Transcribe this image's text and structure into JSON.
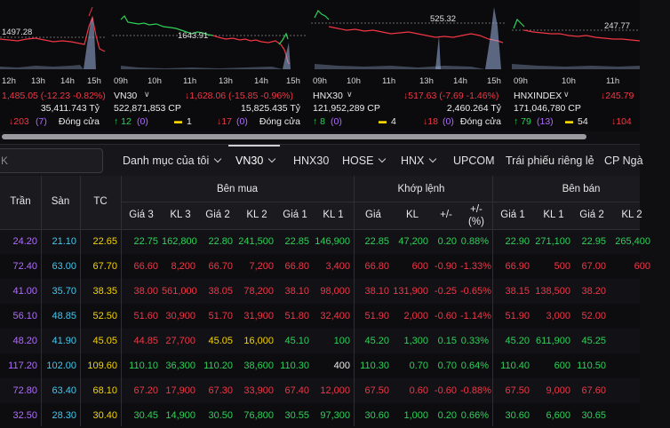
{
  "colors": {
    "up": "#2fd158",
    "down": "#f23645",
    "ceiling": "#b06bff",
    "floor": "#40c8f0",
    "ref": "#f5d300"
  },
  "cards": [
    {
      "id": "vnindex",
      "ref_value": "1497.28",
      "peak_value": "",
      "times": [
        "12h",
        "13h",
        "14h",
        "15h"
      ],
      "name": "",
      "change": "1,485.05 (-12.23 -0.82%)",
      "volume": "",
      "value": "35,411.743 Tỷ",
      "up_count": "↓203",
      "up_paren": "(7)",
      "ref_count": "",
      "down_count": "",
      "down_paren": "",
      "status": "Đóng cửa"
    },
    {
      "id": "vn30",
      "ref_value": "",
      "peak_value": "1643.91",
      "times": [
        "09h",
        "10h",
        "11h",
        "13h",
        "14h",
        "15h"
      ],
      "name": "VN30",
      "change": "↓1,628.06 (-15.85 -0.96%)",
      "volume": "522,871,853 CP",
      "value": "15,825.435 Tỷ",
      "up_count": "↑ 12",
      "up_paren": "(0)",
      "ref_count": "1",
      "down_count": "↓17",
      "down_paren": "(0)",
      "status": "Đóng cửa"
    },
    {
      "id": "hnx30",
      "ref_value": "",
      "peak_value": "525.32",
      "times": [
        "09h",
        "10h",
        "11h",
        "13h",
        "14h",
        "15h"
      ],
      "name": "HNX30",
      "change": "↓517.63 (-7.69 -1.46%)",
      "volume": "121,952,289 CP",
      "value": "2,460.264 Tỷ",
      "up_count": "↑ 8",
      "up_paren": "(0)",
      "ref_count": "4",
      "down_count": "↓18",
      "down_paren": "(0)",
      "status": "Đóng cửa"
    },
    {
      "id": "hnxindex",
      "ref_value": "247.77",
      "peak_value": "",
      "times": [
        "09h",
        "10h",
        "11h"
      ],
      "name": "HNXINDEX",
      "change": "↓245.79",
      "volume": "171,046,780 CP",
      "value": "",
      "up_count": "↑ 79",
      "up_paren": "(13)",
      "ref_count": "54",
      "down_count": "↓104",
      "down_paren": "",
      "status": ""
    }
  ],
  "search": {
    "value": "K"
  },
  "tabs": [
    "Danh mục của tôi",
    "VN30",
    "HNX30",
    "HOSE",
    "HNX",
    "UPCOM",
    "Trái phiếu riêng lẻ",
    "CP Ngà"
  ],
  "table": {
    "group_headers": {
      "buy": "Bên mua",
      "match": "Khớp lệnh",
      "sell": "Bên bán"
    },
    "columns": [
      "Trần",
      "Sàn",
      "TC",
      "Giá 3",
      "KL 3",
      "Giá 2",
      "KL 2",
      "Giá 1",
      "KL 1",
      "Giá",
      "KL",
      "+/-",
      "+/-\n(%)",
      "Giá 1",
      "KL 1",
      "Giá 2",
      "KL 2"
    ],
    "rows": [
      {
        "tran": "24.20",
        "san": "21.10",
        "tc": "22.65",
        "g3": "22.75",
        "kl3": "162,800",
        "g2": "22.80",
        "kl2": "241,500",
        "g1": "22.85",
        "kl1": "146,900",
        "gia": "22.85",
        "kl": "47,200",
        "chg": "0.20",
        "pct": "0.88%",
        "sg1": "22.90",
        "skl1": "271,100",
        "sg2": "22.95",
        "skl2": "265,400",
        "s": [
          "g",
          "g",
          "g",
          "g",
          "g",
          "g",
          "g",
          "g",
          "g",
          "g",
          "g",
          "g",
          "g",
          "g"
        ]
      },
      {
        "tran": "72.40",
        "san": "63.00",
        "tc": "67.70",
        "g3": "66.60",
        "kl3": "8,200",
        "g2": "66.70",
        "kl2": "7,200",
        "g1": "66.80",
        "kl1": "3,400",
        "gia": "66.80",
        "kl": "600",
        "chg": "-0.90",
        "pct": "-1.33%",
        "sg1": "66.90",
        "skl1": "500",
        "sg2": "67.00",
        "skl2": "600",
        "s": [
          "r",
          "r",
          "r",
          "r",
          "r",
          "r",
          "r",
          "r",
          "r",
          "r",
          "r",
          "r",
          "r",
          "r"
        ]
      },
      {
        "tran": "41.00",
        "san": "35.70",
        "tc": "38.35",
        "g3": "38.00",
        "kl3": "561,000",
        "g2": "38.05",
        "kl2": "78,200",
        "g1": "38.10",
        "kl1": "98,000",
        "gia": "38.10",
        "kl": "131,900",
        "chg": "-0.25",
        "pct": "-0.65%",
        "sg1": "38.15",
        "skl1": "138,500",
        "sg2": "38.20",
        "skl2": "",
        "s": [
          "r",
          "r",
          "r",
          "r",
          "r",
          "r",
          "r",
          "r",
          "r",
          "r",
          "r",
          "r",
          "r",
          "r"
        ]
      },
      {
        "tran": "56.10",
        "san": "48.85",
        "tc": "52.50",
        "g3": "51.60",
        "kl3": "30,900",
        "g2": "51.70",
        "kl2": "31,900",
        "g1": "51.80",
        "kl1": "32,400",
        "gia": "51.90",
        "kl": "2,000",
        "chg": "-0.60",
        "pct": "-1.14%",
        "sg1": "51.90",
        "skl1": "3,000",
        "sg2": "52.00",
        "skl2": "",
        "s": [
          "r",
          "r",
          "r",
          "r",
          "r",
          "r",
          "r",
          "r",
          "r",
          "r",
          "r",
          "r",
          "r",
          "r"
        ]
      },
      {
        "tran": "48.20",
        "san": "41.90",
        "tc": "45.05",
        "g3": "44.85",
        "kl3": "27,700",
        "g2": "45.05",
        "kl2": "16,000",
        "g1": "45.10",
        "kl1": "100",
        "gia": "45.20",
        "kl": "1,300",
        "chg": "0.15",
        "pct": "0.33%",
        "sg1": "45.20",
        "skl1": "611,900",
        "sg2": "45.25",
        "skl2": "",
        "s": [
          "r",
          "r",
          "y",
          "y",
          "g",
          "g",
          "g",
          "g",
          "g",
          "g",
          "g",
          "g",
          "g",
          "g"
        ]
      },
      {
        "tran": "117.20",
        "san": "102.00",
        "tc": "109.60",
        "g3": "110.10",
        "kl3": "36,300",
        "g2": "110.20",
        "kl2": "38,600",
        "g1": "110.30",
        "kl1": "400",
        "gia": "110.30",
        "kl": "0.70",
        "chg": "0.70",
        "pct": "0.64%",
        "sg1": "110.40",
        "skl1": "600",
        "sg2": "110.50",
        "skl2": "",
        "s": [
          "g",
          "g",
          "g",
          "g",
          "g",
          "w",
          "g",
          "g",
          "g",
          "g",
          "g",
          "g",
          "g",
          "g"
        ]
      },
      {
        "tran": "72.80",
        "san": "63.40",
        "tc": "68.10",
        "g3": "67.20",
        "kl3": "17,900",
        "g2": "67.30",
        "kl2": "33,900",
        "g1": "67.40",
        "kl1": "12,000",
        "gia": "67.50",
        "kl": "0.60",
        "chg": "-0.60",
        "pct": "-0.88%",
        "sg1": "67.50",
        "skl1": "9,000",
        "sg2": "67.60",
        "skl2": "",
        "s": [
          "r",
          "r",
          "r",
          "r",
          "r",
          "r",
          "r",
          "r",
          "r",
          "r",
          "r",
          "r",
          "r",
          "r"
        ]
      },
      {
        "tran": "32.50",
        "san": "28.30",
        "tc": "30.40",
        "g3": "30.45",
        "kl3": "14,900",
        "g2": "30.50",
        "kl2": "76,800",
        "g1": "30.55",
        "kl1": "97,300",
        "gia": "30.60",
        "kl": "1,000",
        "chg": "0.20",
        "pct": "0.66%",
        "sg1": "30.60",
        "skl1": "6,600",
        "sg2": "30.65",
        "skl2": "",
        "s": [
          "g",
          "g",
          "g",
          "g",
          "g",
          "g",
          "g",
          "g",
          "g",
          "g",
          "g",
          "g",
          "g",
          "g"
        ]
      }
    ]
  }
}
